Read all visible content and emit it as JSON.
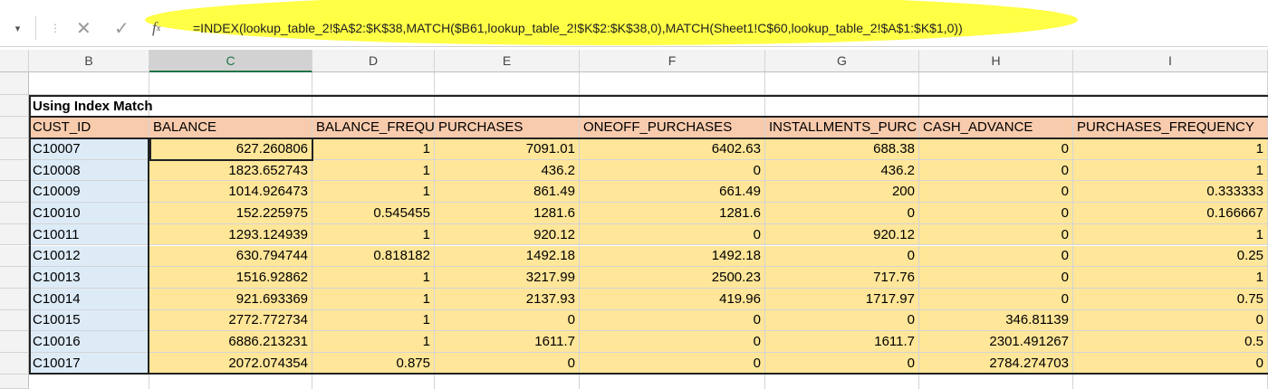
{
  "formula_bar": {
    "formula": "=INDEX(lookup_table_2!$A$2:$K$38,MATCH($B61,lookup_table_2!$K$2:$K$38,0),MATCH(Sheet1!C$60,lookup_table_2!$A$1:$K$1,0))"
  },
  "columns": [
    "B",
    "C",
    "D",
    "E",
    "F",
    "G",
    "H",
    "I"
  ],
  "sheet": {
    "title": "Using Index Match",
    "header": [
      "CUST_ID",
      "BALANCE",
      "BALANCE_FREQU",
      "PURCHASES",
      "ONEOFF_PURCHASES",
      "INSTALLMENTS_PURC",
      "CASH_ADVANCE",
      "PURCHASES_FREQUENCY"
    ],
    "rows": [
      [
        "C10007",
        "627.260806",
        "1",
        "7091.01",
        "6402.63",
        "688.38",
        "0",
        "1"
      ],
      [
        "C10008",
        "1823.652743",
        "1",
        "436.2",
        "0",
        "436.2",
        "0",
        "1"
      ],
      [
        "C10009",
        "1014.926473",
        "1",
        "861.49",
        "661.49",
        "200",
        "0",
        "0.333333"
      ],
      [
        "C10010",
        "152.225975",
        "0.545455",
        "1281.6",
        "1281.6",
        "0",
        "0",
        "0.166667"
      ],
      [
        "C10011",
        "1293.124939",
        "1",
        "920.12",
        "0",
        "920.12",
        "0",
        "1"
      ],
      [
        "C10012",
        "630.794744",
        "0.818182",
        "1492.18",
        "1492.18",
        "0",
        "0",
        "0.25"
      ],
      [
        "C10013",
        "1516.92862",
        "1",
        "3217.99",
        "2500.23",
        "717.76",
        "0",
        "1"
      ],
      [
        "C10014",
        "921.693369",
        "1",
        "2137.93",
        "419.96",
        "1717.97",
        "0",
        "0.75"
      ],
      [
        "C10015",
        "2772.772734",
        "1",
        "0",
        "0",
        "0",
        "346.81139",
        "0"
      ],
      [
        "C10016",
        "6886.213231",
        "1",
        "1611.7",
        "0",
        "1611.7",
        "2301.491267",
        "0.5"
      ],
      [
        "C10017",
        "2072.074354",
        "0.875",
        "0",
        "0",
        "0",
        "2784.274703",
        "0"
      ]
    ]
  }
}
